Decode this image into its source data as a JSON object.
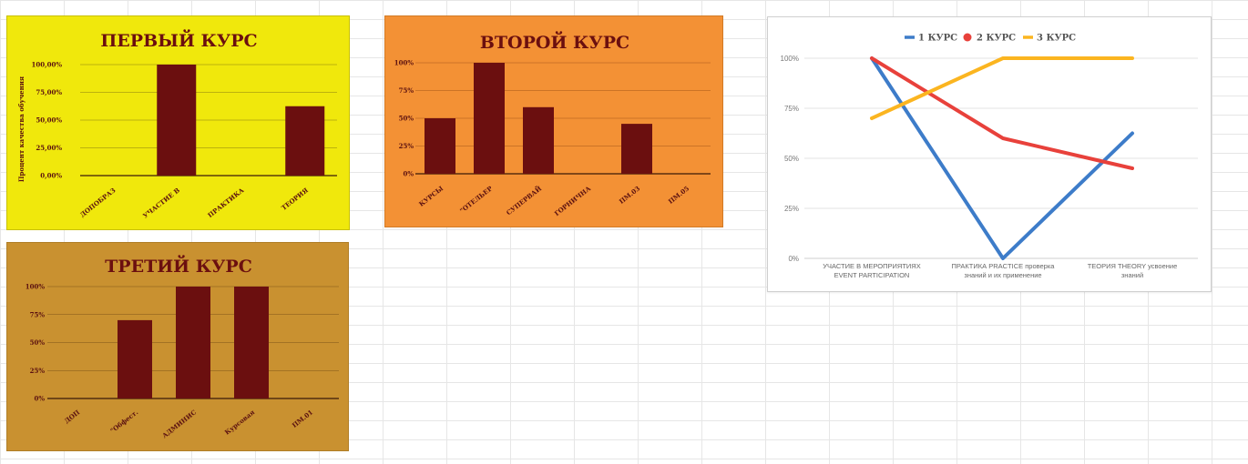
{
  "colors": {
    "bar": "#6b0f0f",
    "bg_first": "#f0e80c",
    "bg_second": "#f39135",
    "bg_third": "#c99130",
    "series_1": "#3d7cc9",
    "series_2": "#e8413b",
    "series_3": "#fbb520"
  },
  "chart_data": [
    {
      "id": "first",
      "type": "bar",
      "title": "ПЕРВЫЙ КУРС",
      "ylabel": "Процент качества обучения",
      "ylim": [
        0,
        100
      ],
      "yticks": [
        "0,00%",
        "25,00%",
        "50,00%",
        "75,00%",
        "100,00%"
      ],
      "categories": [
        "ДОПОБРАЗ",
        "УЧАСТИЕ В",
        "ПРАКТИКА",
        "ТЕОРИЯ"
      ],
      "values": [
        0,
        100,
        0,
        62.5
      ],
      "grid": true
    },
    {
      "id": "second",
      "type": "bar",
      "title": "ВТОРОЙ КУРС",
      "ylim": [
        0,
        100
      ],
      "yticks": [
        "0%",
        "25%",
        "50%",
        "75%",
        "100%"
      ],
      "categories": [
        "КУРСЫ",
        "\"ОТЕЛЬЕР",
        "СУПЕРВАЙ",
        "ГОРНИЧНА",
        "ПМ.03",
        "ПМ.05"
      ],
      "values": [
        50,
        100,
        60,
        0,
        45,
        0
      ],
      "grid": true
    },
    {
      "id": "third",
      "type": "bar",
      "title": "ТРЕТИЙ КУРС",
      "ylim": [
        0,
        100
      ],
      "yticks": [
        "0%",
        "25%",
        "50%",
        "75%",
        "100%"
      ],
      "categories": [
        "ДОП",
        "\"Обфест.",
        "АДМИНИС",
        "Курсовая",
        "ПМ.01"
      ],
      "values": [
        0,
        70,
        100,
        100,
        0
      ],
      "grid": true
    },
    {
      "id": "lines",
      "type": "line",
      "ylim": [
        0,
        100
      ],
      "yticks": [
        "0%",
        "25%",
        "50%",
        "75%",
        "100%"
      ],
      "categories": [
        [
          "УЧАСТИЕ В МЕРОПРИЯТИЯХ",
          "EVENT PARTICIPATION"
        ],
        [
          "ПРАКТИКА   PRACTICE проверка",
          "знаний и их применение"
        ],
        [
          "ТЕОРИЯ   THEORY усвоение",
          "знаний"
        ]
      ],
      "series": [
        {
          "name": "1 КУРС",
          "values": [
            100,
            0,
            62.5
          ]
        },
        {
          "name": "2 КУРС",
          "values": [
            100,
            60,
            45
          ]
        },
        {
          "name": "3 КУРС",
          "values": [
            70,
            100,
            100
          ]
        }
      ],
      "legend": "top",
      "grid": true
    }
  ]
}
